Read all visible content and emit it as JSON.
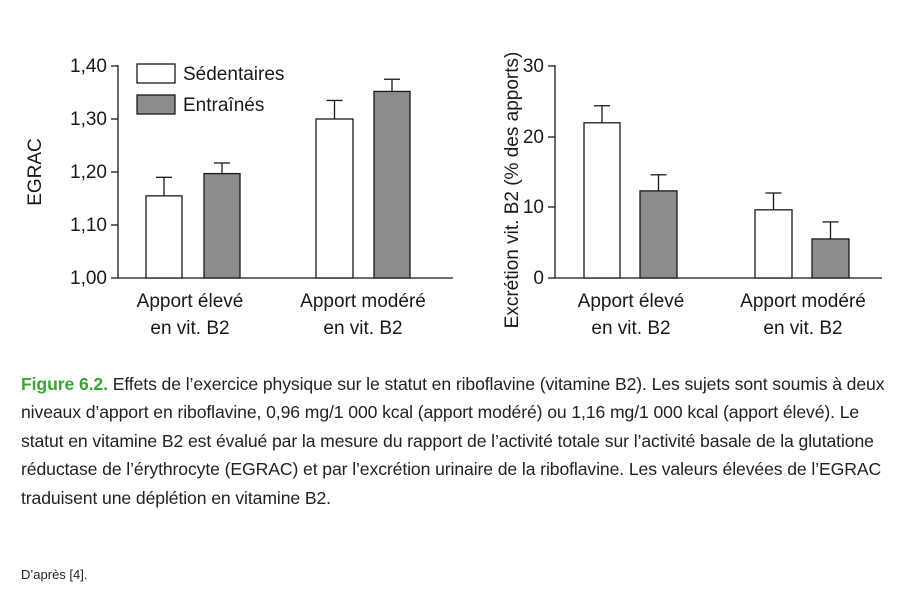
{
  "chart_data": [
    {
      "type": "bar",
      "ylabel": "EGRAC",
      "categories": [
        [
          "Apport élevé",
          "en vit. B2"
        ],
        [
          "Apport modéré",
          "en vit. B2"
        ]
      ],
      "yticks": [
        "1,00",
        "1,10",
        "1,20",
        "1,30",
        "1,40"
      ],
      "ylim": [
        1.0,
        1.42
      ],
      "series": [
        {
          "name": "Sédentaires",
          "values": [
            1.155,
            1.3
          ],
          "errors": [
            0.035,
            0.035
          ],
          "color": "#ffffff"
        },
        {
          "name": "Entraînés",
          "values": [
            1.197,
            1.352
          ],
          "errors": [
            0.02,
            0.023
          ],
          "color": "#8c8c8c"
        }
      ],
      "legend": "top-left"
    },
    {
      "type": "bar",
      "ylabel": "Excrétion vit. B2 (% des apports)",
      "categories": [
        [
          "Apport élevé",
          "en vit. B2"
        ],
        [
          "Apport modéré",
          "en vit. B2"
        ]
      ],
      "yticks": [
        "0",
        "10",
        "20",
        "30"
      ],
      "ylim": [
        0,
        30
      ],
      "series": [
        {
          "name": "Sédentaires",
          "values": [
            22,
            9.6
          ],
          "errors": [
            2.4,
            2.4
          ],
          "color": "#ffffff"
        },
        {
          "name": "Entraînés",
          "values": [
            12.3,
            5.5
          ],
          "errors": [
            2.3,
            2.4
          ],
          "color": "#8c8c8c"
        }
      ]
    }
  ],
  "caption": {
    "label": "Figure 6.2.",
    "text": "Effets de l’exercice physique sur le statut en riboflavine (vitamine B2). Les sujets sont soumis à deux niveaux d’apport en riboflavine, 0,96 mg/1 000 kcal (apport modéré) ou 1,16 mg/1 000 kcal (apport élevé). Le statut en vitamine B2 est évalué par la mesure du rapport de l’activité totale sur l’activité basale de la glutatione réductase de l’érythrocyte (EGRAC) et par l’excrétion urinaire de la riboflavine. Les valeurs élevées de l’EGRAC traduisent une déplétion en vitamine B2.",
    "source": "D’après [4]."
  },
  "colors": {
    "caption_label": "#3aa535",
    "bar_trained": "#8c8c8c",
    "axis": "#1a1a1a"
  }
}
